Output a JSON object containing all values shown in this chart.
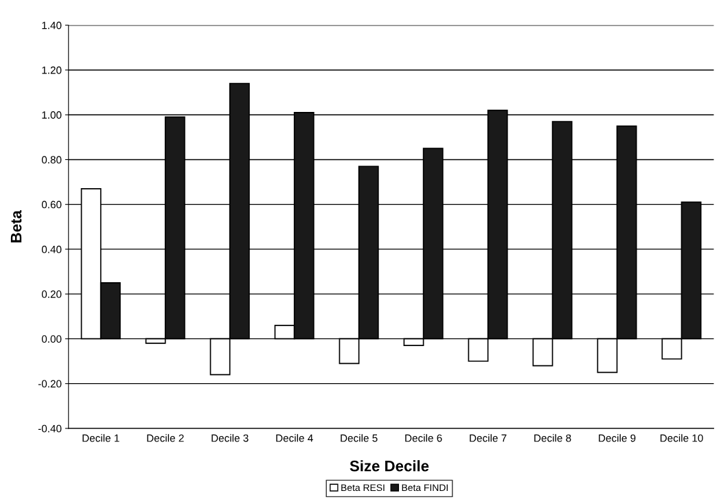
{
  "chart_data": {
    "type": "bar",
    "xlabel": "Size Decile",
    "ylabel": "Beta",
    "categories": [
      "Decile 1",
      "Decile 2",
      "Decile 3",
      "Decile 4",
      "Decile 5",
      "Decile 6",
      "Decile 7",
      "Decile 8",
      "Decile 9",
      "Decile 10"
    ],
    "series": [
      {
        "name": "Beta RESI",
        "color": "#ffffff",
        "values": [
          0.67,
          -0.02,
          -0.16,
          0.06,
          -0.11,
          -0.03,
          -0.1,
          -0.12,
          -0.15,
          -0.09
        ]
      },
      {
        "name": "Beta FINDI",
        "color": "#1a1a1a",
        "values": [
          0.25,
          0.99,
          1.14,
          1.01,
          0.77,
          0.85,
          1.02,
          0.97,
          0.95,
          0.61
        ]
      }
    ],
    "ylim": [
      -0.4,
      1.4
    ],
    "yticks": [
      {
        "value": -0.4,
        "label": "-0.40"
      },
      {
        "value": -0.2,
        "label": "-0.20"
      },
      {
        "value": 0,
        "label": "0.00"
      },
      {
        "value": 0.2,
        "label": "0.20"
      },
      {
        "value": 0.4,
        "label": "0.40"
      },
      {
        "value": 0.6,
        "label": "0.60"
      },
      {
        "value": 0.8,
        "label": "0.80"
      },
      {
        "value": 1.0,
        "label": "1.00"
      },
      {
        "value": 1.2,
        "label": "1.20"
      },
      {
        "value": 1.4,
        "label": "1.40"
      }
    ],
    "grid": "y",
    "legend": "bottom"
  }
}
